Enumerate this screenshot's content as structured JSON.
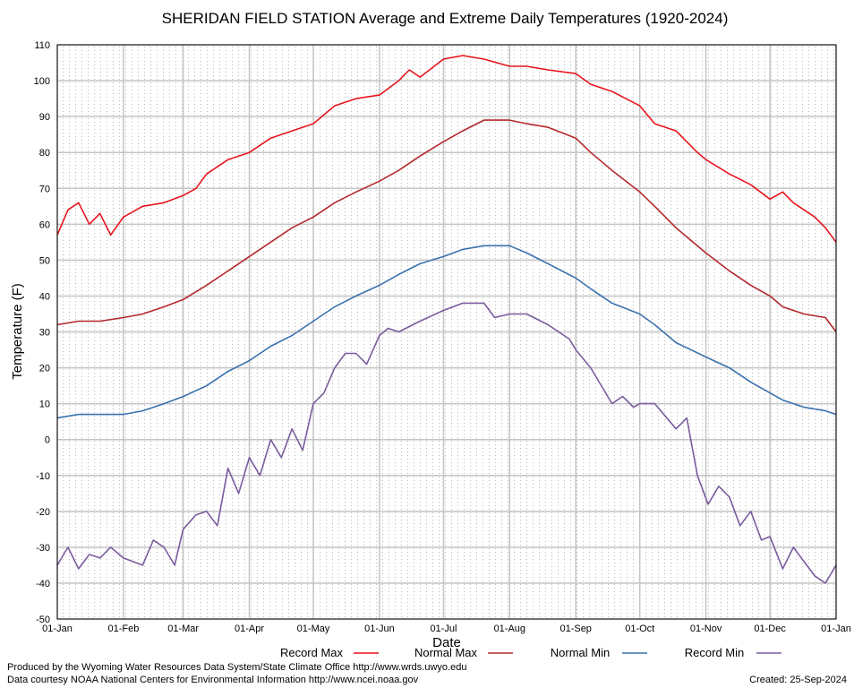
{
  "chart_data": {
    "type": "line",
    "title": "SHERIDAN FIELD STATION Average and Extreme Daily Temperatures (1920-2024)",
    "xlabel": "Date",
    "ylabel": "Temperature (F)",
    "ylim": [
      -50,
      110
    ],
    "yticks": [
      -50,
      -40,
      -30,
      -20,
      -10,
      0,
      10,
      20,
      30,
      40,
      50,
      60,
      70,
      80,
      90,
      100,
      110
    ],
    "xlim_days": [
      0,
      365
    ],
    "xticks": [
      {
        "label": "01-Jan",
        "day": 0
      },
      {
        "label": "01-Feb",
        "day": 31
      },
      {
        "label": "01-Mar",
        "day": 59
      },
      {
        "label": "01-Apr",
        "day": 90
      },
      {
        "label": "01-May",
        "day": 120
      },
      {
        "label": "01-Jun",
        "day": 151
      },
      {
        "label": "01-Jul",
        "day": 181
      },
      {
        "label": "01-Aug",
        "day": 212
      },
      {
        "label": "01-Sep",
        "day": 243
      },
      {
        "label": "01-Oct",
        "day": 273
      },
      {
        "label": "01-Nov",
        "day": 304
      },
      {
        "label": "01-Dec",
        "day": 334
      },
      {
        "label": "01-Jan",
        "day": 365
      }
    ],
    "grid": true,
    "legend_position": "bottom",
    "series": [
      {
        "name": "Record Max",
        "color": "#e8141c",
        "x": [
          0,
          5,
          10,
          15,
          20,
          25,
          31,
          40,
          50,
          59,
          65,
          70,
          80,
          90,
          100,
          110,
          120,
          130,
          140,
          151,
          160,
          165,
          170,
          181,
          190,
          200,
          212,
          220,
          230,
          243,
          250,
          260,
          273,
          280,
          290,
          300,
          304,
          315,
          325,
          334,
          340,
          345,
          350,
          355,
          360,
          365
        ],
        "y": [
          57,
          64,
          66,
          60,
          63,
          57,
          62,
          65,
          66,
          68,
          70,
          74,
          78,
          80,
          84,
          86,
          88,
          93,
          95,
          96,
          100,
          103,
          101,
          106,
          107,
          106,
          104,
          104,
          103,
          102,
          99,
          97,
          93,
          88,
          86,
          80,
          78,
          74,
          71,
          67,
          69,
          66,
          64,
          62,
          59,
          55
        ]
      },
      {
        "name": "Normal Max",
        "color": "#b4282c",
        "x": [
          0,
          10,
          20,
          31,
          40,
          50,
          59,
          70,
          80,
          90,
          100,
          110,
          120,
          130,
          140,
          151,
          160,
          170,
          181,
          190,
          200,
          212,
          220,
          230,
          243,
          250,
          260,
          273,
          280,
          290,
          304,
          315,
          325,
          334,
          340,
          350,
          360,
          365
        ],
        "y": [
          32,
          33,
          33,
          34,
          35,
          37,
          39,
          43,
          47,
          51,
          55,
          59,
          62,
          66,
          69,
          72,
          75,
          79,
          83,
          86,
          89,
          89,
          88,
          87,
          84,
          80,
          75,
          69,
          65,
          59,
          52,
          47,
          43,
          40,
          37,
          35,
          34,
          30
        ]
      },
      {
        "name": "Normal Min",
        "color": "#3a72ae",
        "x": [
          0,
          10,
          20,
          31,
          40,
          50,
          59,
          70,
          80,
          90,
          100,
          110,
          120,
          130,
          140,
          151,
          160,
          170,
          181,
          190,
          200,
          212,
          220,
          230,
          243,
          250,
          260,
          273,
          280,
          290,
          304,
          315,
          325,
          334,
          340,
          350,
          360,
          365
        ],
        "y": [
          6,
          7,
          7,
          7,
          8,
          10,
          12,
          15,
          19,
          22,
          26,
          29,
          33,
          37,
          40,
          43,
          46,
          49,
          51,
          53,
          54,
          54,
          52,
          49,
          45,
          42,
          38,
          35,
          32,
          27,
          23,
          20,
          16,
          13,
          11,
          9,
          8,
          7
        ]
      },
      {
        "name": "Record Min",
        "color": "#7a5c9e",
        "x": [
          0,
          5,
          10,
          15,
          20,
          25,
          31,
          40,
          45,
          50,
          55,
          59,
          65,
          70,
          75,
          80,
          85,
          90,
          95,
          100,
          105,
          110,
          115,
          120,
          125,
          130,
          135,
          140,
          145,
          151,
          155,
          160,
          170,
          181,
          190,
          200,
          205,
          212,
          220,
          230,
          235,
          240,
          243,
          250,
          255,
          260,
          265,
          270,
          273,
          280,
          290,
          295,
          300,
          305,
          310,
          315,
          320,
          325,
          330,
          334,
          340,
          345,
          350,
          355,
          360,
          365
        ],
        "y": [
          -35,
          -30,
          -36,
          -32,
          -33,
          -30,
          -33,
          -35,
          -28,
          -30,
          -35,
          -25,
          -21,
          -20,
          -24,
          -8,
          -15,
          -5,
          -10,
          0,
          -5,
          3,
          -3,
          10,
          13,
          20,
          24,
          24,
          21,
          29,
          31,
          30,
          33,
          36,
          38,
          38,
          34,
          35,
          35,
          32,
          30,
          28,
          25,
          20,
          15,
          10,
          12,
          9,
          10,
          10,
          3,
          6,
          -10,
          -18,
          -13,
          -16,
          -24,
          -20,
          -28,
          -27,
          -36,
          -30,
          -34,
          -38,
          -40,
          -35
        ]
      }
    ]
  },
  "footer": {
    "produced_by": "Produced by the Wyoming Water Resources Data System/State Climate Office http://www.wrds.uwyo.edu",
    "courtesy": "Data courtesy NOAA National Centers for Environmental Information http://www.ncei.noaa.gov",
    "created": "Created:  25-Sep-2024"
  }
}
